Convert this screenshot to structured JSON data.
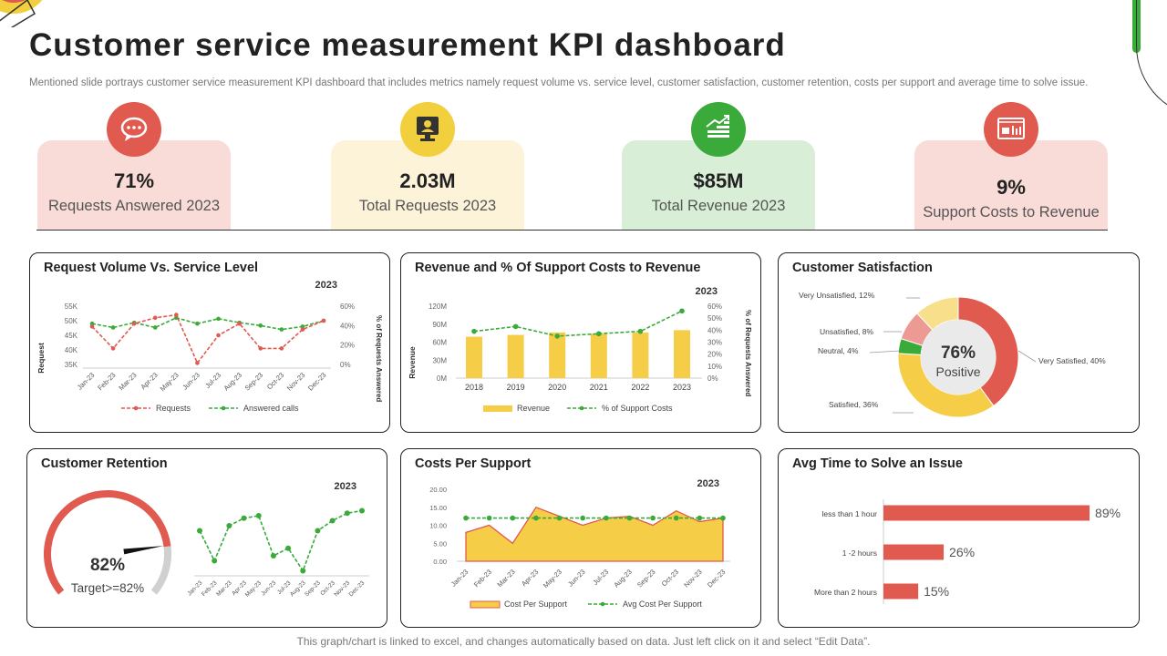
{
  "header": {
    "title": "Customer service measurement KPI dashboard",
    "subtitle": "Mentioned slide portrays customer service measurement KPI dashboard that includes metrics namely request volume vs. service level,  customer satisfaction, customer retention, costs per support and average time to solve issue."
  },
  "kpis": [
    {
      "value": "71%",
      "label": "Requests Answered 2023",
      "icon": "chat-bubble-icon",
      "color": "#e05a50",
      "bg": "#f9dcd8"
    },
    {
      "value": "2.03M",
      "label": "Total Requests 2023",
      "icon": "support-agent-icon",
      "color": "#f2cf3c",
      "bg": "#fdf3d9"
    },
    {
      "value": "$85M",
      "label": "Total Revenue 2023",
      "icon": "growth-chart-icon",
      "color": "#3aaa3a",
      "bg": "#d9eed7"
    },
    {
      "value": "9%",
      "label": "Support Costs to Revenue",
      "icon": "report-screen-icon",
      "color": "#e05a50",
      "bg": "#f9dcd8"
    }
  ],
  "panels": {
    "request_volume": {
      "title": "Request Volume Vs. Service Level",
      "year": "2023"
    },
    "revenue": {
      "title": "Revenue and % Of Support Costs to Revenue",
      "year": "2023"
    },
    "satisfaction": {
      "title": "Customer Satisfaction"
    },
    "retention": {
      "title": "Customer Retention",
      "year": "2023"
    },
    "costs": {
      "title": "Costs Per Support",
      "year": "2023"
    },
    "avg_time": {
      "title": "Avg Time to Solve an Issue"
    }
  },
  "footer": "This graph/chart is linked to excel, and changes automatically based on data. Just left click on it and select “Edit Data”.",
  "colors": {
    "red": "#e05a50",
    "yellow": "#f5cd47",
    "green": "#3aaa3a",
    "pink": "#ee9a94",
    "light_yellow": "#f8df8c",
    "grey": "#d0d0d0"
  },
  "chart_data": [
    {
      "id": "request_volume",
      "type": "line",
      "categories": [
        "Jan-23",
        "Feb-23",
        "Mar-23",
        "Apr-23",
        "May-23",
        "Jun-23",
        "Jul-23",
        "Aug-23",
        "Sep-23",
        "Oct-23",
        "Nov-23",
        "Dec-23"
      ],
      "series": [
        {
          "name": "Requests",
          "axis": "left",
          "color": "#e05a50",
          "values": [
            48000,
            40500,
            49000,
            51000,
            52000,
            35500,
            45000,
            49000,
            40500,
            40500,
            47000,
            50000
          ]
        },
        {
          "name": "Answered calls",
          "axis": "right",
          "color": "#3aaa3a",
          "values": [
            0.42,
            0.38,
            0.43,
            0.38,
            0.48,
            0.42,
            0.47,
            0.43,
            0.4,
            0.36,
            0.39,
            0.45
          ]
        }
      ],
      "ylabel": "Request",
      "y2label": "% of Requests Answered",
      "ylim": [
        35000,
        55000
      ],
      "yticks": [
        "35K",
        "40K",
        "45K",
        "50K",
        "55K"
      ],
      "y2lim": [
        0,
        0.6
      ],
      "y2ticks": [
        "0%",
        "20%",
        "40%",
        "60%"
      ]
    },
    {
      "id": "revenue",
      "type": "bar",
      "categories": [
        "2018",
        "2019",
        "2020",
        "2021",
        "2022",
        "2023"
      ],
      "series": [
        {
          "name": "Revenue",
          "axis": "left",
          "kind": "bar",
          "color": "#f5cd47",
          "values": [
            69,
            72,
            76,
            74,
            76,
            80
          ]
        },
        {
          "name": "% of Support Costs",
          "axis": "right",
          "kind": "line",
          "color": "#3aaa3a",
          "values": [
            0.39,
            0.43,
            0.35,
            0.37,
            0.39,
            0.56
          ]
        }
      ],
      "ylabel": "Revenue",
      "y2label": "% of Requests Answered",
      "ylim": [
        0,
        120
      ],
      "yticks": [
        "0M",
        "30M",
        "60M",
        "90M",
        "120M"
      ],
      "y2lim": [
        0,
        0.6
      ],
      "y2ticks": [
        "0%",
        "10%",
        "20%",
        "30%",
        "40%",
        "50%",
        "60%"
      ]
    },
    {
      "id": "satisfaction",
      "type": "pie",
      "center_value": "76%",
      "center_label": "Positive",
      "slices": [
        {
          "label": "Very Satisfied, 40%",
          "value": 40,
          "color": "#e05a50"
        },
        {
          "label": "Satisfied, 36%",
          "value": 36,
          "color": "#f5cd47"
        },
        {
          "label": "Neutral, 4%",
          "value": 4,
          "color": "#3aaa3a"
        },
        {
          "label": "Unsatisfied, 8%",
          "value": 8,
          "color": "#ee9a94"
        },
        {
          "label": "Very Unsatisfied, 12%",
          "value": 12,
          "color": "#f8df8c"
        }
      ]
    },
    {
      "id": "retention",
      "type": "line",
      "gauge_value": 0.82,
      "gauge_label": "82%",
      "gauge_target": "Target>=82%",
      "categories": [
        "Jan-23",
        "Feb-23",
        "Mar-23",
        "Apr-23",
        "May-23",
        "Jun-23",
        "Jul-23",
        "Aug-23",
        "Sep-23",
        "Oct-23",
        "Nov-23",
        "Dec-23"
      ],
      "series": [
        {
          "name": "Retention",
          "color": "#3aaa3a",
          "values": [
            84,
            78,
            85,
            86.5,
            87,
            79,
            80.5,
            76,
            84,
            86,
            87.5,
            88
          ]
        }
      ]
    },
    {
      "id": "costs",
      "type": "area",
      "categories": [
        "Jan-23",
        "Feb-23",
        "Mar-23",
        "Apr-23",
        "May-23",
        "Jun-23",
        "Jul-23",
        "Aug-23",
        "Sep-23",
        "Oct-23",
        "Nov-23",
        "Dec-23"
      ],
      "series": [
        {
          "name": "Cost Per Support",
          "kind": "area",
          "color": "#f5cd47",
          "values": [
            8,
            10,
            5,
            15,
            12.5,
            10,
            12,
            12.5,
            10,
            14,
            11,
            12
          ]
        },
        {
          "name": "Avg Cost Per Support",
          "kind": "line",
          "color": "#3aaa3a",
          "values": [
            12,
            12,
            12,
            12,
            12,
            12,
            12,
            12,
            12,
            12,
            12,
            12
          ]
        }
      ],
      "ylim": [
        0,
        20
      ],
      "yticks": [
        "0.00",
        "5.00",
        "10.00",
        "15.00",
        "20.00"
      ]
    },
    {
      "id": "avg_time",
      "type": "bar",
      "orientation": "horizontal",
      "categories": [
        "less than 1 hour",
        "1 -2 hours",
        "More than 2 hours"
      ],
      "values": [
        0.89,
        0.26,
        0.15
      ],
      "value_labels": [
        "89%",
        "26%",
        "15%"
      ],
      "color": "#e05a50"
    }
  ]
}
